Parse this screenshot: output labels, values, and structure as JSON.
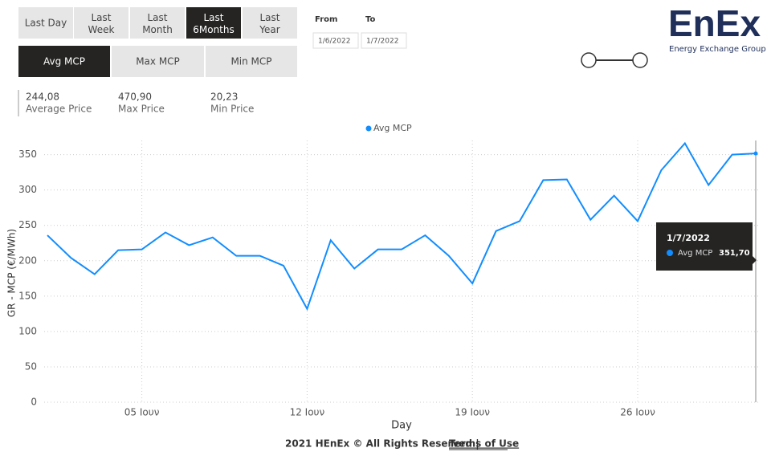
{
  "period_buttons": [
    "Last Day",
    "Last Week",
    "Last Month",
    "Last 6Months",
    "Last Year"
  ],
  "date_range": {
    "from_label": "From",
    "to_label": "To",
    "from": "1/6/2022",
    "to": "1/7/2022"
  },
  "logo": {
    "name": "EnEx",
    "tagline": "Energy Exchange Group"
  },
  "measure_tabs": [
    "Avg MCP",
    "Max MCP",
    "Min MCP"
  ],
  "kpis": [
    {
      "value": "244,08",
      "label": "Average Price"
    },
    {
      "value": "470,90",
      "label": "Max Price"
    },
    {
      "value": "20,23",
      "label": "Min Price"
    }
  ],
  "footer": {
    "text": "2021 HEnEx © All Rights Reserved |",
    "link": "Terms of Use"
  },
  "chart_data": {
    "type": "line",
    "y_label": "GR - MCP (€/MWh)",
    "x_label": "Day",
    "categories": [
      null,
      null,
      null,
      null,
      "05 Ιουν",
      null,
      null,
      null,
      null,
      null,
      null,
      "12 Ιουν",
      null,
      null,
      null,
      null,
      null,
      null,
      "19 Ιουν",
      null,
      null,
      null,
      null,
      null,
      null,
      "26 Ιουν",
      null,
      null,
      null,
      null,
      null
    ],
    "series": [
      {
        "name": "Avg MCP",
        "color": "#118DFF",
        "values": [
          236,
          204,
          181,
          215,
          216,
          240,
          222,
          233,
          207,
          207,
          193,
          132,
          229,
          189,
          216,
          216,
          236,
          207,
          168,
          242,
          256,
          314,
          315,
          258,
          292,
          256,
          328,
          366,
          307,
          350,
          351.7
        ],
        "value_labels": [
          null,
          null,
          null,
          null,
          null,
          null,
          null,
          null,
          null,
          null,
          null,
          null,
          null,
          null,
          null,
          null,
          null,
          null,
          null,
          null,
          null,
          null,
          null,
          null,
          null,
          null,
          null,
          null,
          null,
          null,
          "351,70"
        ]
      }
    ],
    "tooltip_title": "1/7/2022",
    "ylim": [
      0,
      370
    ],
    "yticks": [
      0,
      50,
      100,
      150,
      200,
      250,
      300,
      350
    ],
    "grid": true
  }
}
